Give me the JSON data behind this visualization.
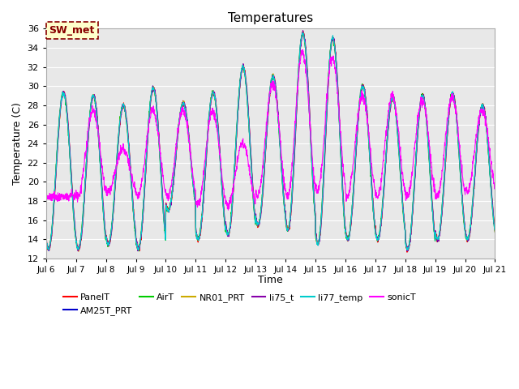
{
  "title": "Temperatures",
  "ylabel": "Temperature (C)",
  "xlabel": "Time",
  "ylim": [
    12,
    36
  ],
  "series_names": [
    "PanelT",
    "AM25T_PRT",
    "AirT",
    "NR01_PRT",
    "li75_t",
    "li77_temp",
    "sonicT"
  ],
  "series_colors": [
    "#ff0000",
    "#0000cc",
    "#00cc00",
    "#ccaa00",
    "#8800aa",
    "#00cccc",
    "#ff00ff"
  ],
  "annotation_text": "SW_met",
  "annotation_bg": "#ffffcc",
  "annotation_fg": "#880000",
  "x_ticks": [
    6,
    7,
    8,
    9,
    10,
    11,
    12,
    13,
    14,
    15,
    16,
    17,
    18,
    19,
    20,
    21
  ],
  "x_tick_labels": [
    "Jul 6",
    "Jul 7",
    "Jul 8",
    "Jul 9",
    "Jul 10",
    "Jul 11",
    "Jul 12",
    "Jul 13",
    "Jul 14",
    "Jul 15",
    "Jul 16",
    "Jul 17",
    "Jul 18",
    "Jul 19",
    "Jul 20",
    "Jul 21"
  ],
  "y_ticks": [
    12,
    14,
    16,
    18,
    20,
    22,
    24,
    26,
    28,
    30,
    32,
    34,
    36
  ],
  "grid_color": "#ffffff",
  "bg_color": "#e8e8e8",
  "fig_bg": "#ffffff",
  "daily_peaks": [
    29.3,
    29.0,
    28.0,
    29.8,
    28.2,
    29.4,
    32.0,
    31.0,
    35.5,
    35.0,
    30.0,
    28.8,
    29.0,
    29.2,
    28.0,
    28.0
  ],
  "daily_mins": [
    13.0,
    13.0,
    13.5,
    13.0,
    17.0,
    14.0,
    14.5,
    15.5,
    15.0,
    13.5,
    14.0,
    14.0,
    13.0,
    14.0,
    14.0,
    14.0
  ],
  "sonic_peaks": [
    18.5,
    27.5,
    23.5,
    27.5,
    27.5,
    27.4,
    24.0,
    30.3,
    33.5,
    33.0,
    29.0,
    29.0,
    28.5,
    28.8,
    27.5,
    27.5
  ],
  "sonic_mins": [
    18.5,
    18.5,
    19.0,
    18.5,
    18.5,
    17.5,
    17.5,
    18.5,
    18.5,
    19.0,
    18.5,
    18.5,
    18.5,
    18.5,
    19.0,
    19.0
  ]
}
